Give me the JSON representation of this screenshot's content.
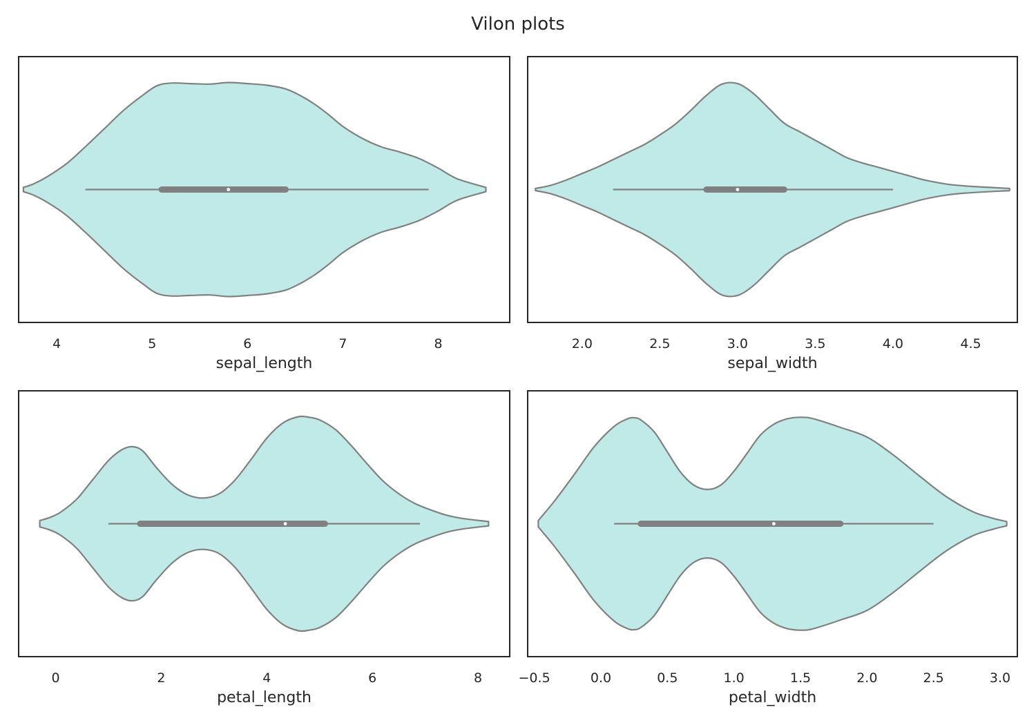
{
  "figure": {
    "title": "Vilon plots"
  },
  "colors": {
    "violin_fill": "#c0eae8",
    "outline": "#808080",
    "frame": "#262626",
    "median": "#ffffff"
  },
  "chart_data": [
    {
      "type": "violin",
      "xlabel": "sepal_length",
      "xlim": [
        3.6,
        8.75
      ],
      "ticks": [
        4,
        5,
        6,
        7,
        8
      ],
      "tick_labels": [
        "4",
        "5",
        "6",
        "7",
        "8"
      ],
      "grid": false,
      "density": {
        "x": [
          3.65,
          3.75,
          3.9,
          4.1,
          4.3,
          4.5,
          4.7,
          4.9,
          5.05,
          5.2,
          5.4,
          5.6,
          5.8,
          6.0,
          6.2,
          6.4,
          6.55,
          6.7,
          6.85,
          7.0,
          7.2,
          7.4,
          7.6,
          7.8,
          8.0,
          8.2,
          8.5
        ],
        "w": [
          0.02,
          0.05,
          0.12,
          0.24,
          0.4,
          0.57,
          0.74,
          0.88,
          0.97,
          0.995,
          0.99,
          0.985,
          1.0,
          0.99,
          0.975,
          0.94,
          0.88,
          0.8,
          0.7,
          0.59,
          0.48,
          0.4,
          0.35,
          0.29,
          0.2,
          0.1,
          0.02
        ]
      },
      "box": {
        "whisker_low": 4.3,
        "q1": 5.1,
        "median": 5.8,
        "q3": 6.4,
        "whisker_high": 7.9
      }
    },
    {
      "type": "violin",
      "xlabel": "sepal_width",
      "xlim": [
        1.65,
        4.8
      ],
      "ticks": [
        2.0,
        2.5,
        3.0,
        3.5,
        4.0,
        4.5
      ],
      "tick_labels": [
        "2.0",
        "2.5",
        "3.0",
        "3.5",
        "4.0",
        "4.5"
      ],
      "grid": false,
      "density": {
        "x": [
          1.7,
          1.8,
          1.9,
          2.0,
          2.1,
          2.2,
          2.3,
          2.4,
          2.5,
          2.6,
          2.7,
          2.8,
          2.9,
          3.0,
          3.1,
          3.2,
          3.3,
          3.4,
          3.5,
          3.6,
          3.7,
          3.8,
          3.9,
          4.0,
          4.1,
          4.2,
          4.35,
          4.5,
          4.75
        ],
        "w": [
          0.01,
          0.04,
          0.09,
          0.15,
          0.21,
          0.28,
          0.35,
          0.42,
          0.51,
          0.61,
          0.74,
          0.88,
          0.985,
          0.99,
          0.9,
          0.76,
          0.62,
          0.54,
          0.46,
          0.38,
          0.3,
          0.25,
          0.21,
          0.17,
          0.13,
          0.09,
          0.05,
          0.03,
          0.01
        ]
      },
      "box": {
        "whisker_low": 2.2,
        "q1": 2.8,
        "median": 3.0,
        "q3": 3.3,
        "whisker_high": 4.0
      }
    },
    {
      "type": "violin",
      "xlabel": "petal_length",
      "xlim": [
        -0.7,
        8.6
      ],
      "ticks": [
        0,
        2,
        4,
        6,
        8
      ],
      "tick_labels": [
        "0",
        "2",
        "4",
        "6",
        "8"
      ],
      "grid": false,
      "density": {
        "x": [
          -0.3,
          -0.1,
          0.1,
          0.4,
          0.7,
          1.0,
          1.25,
          1.45,
          1.65,
          1.9,
          2.2,
          2.5,
          2.8,
          3.1,
          3.4,
          3.7,
          4.0,
          4.3,
          4.6,
          4.8,
          5.0,
          5.3,
          5.6,
          5.9,
          6.2,
          6.5,
          6.8,
          7.1,
          7.4,
          7.7,
          8.2
        ],
        "w": [
          0.03,
          0.06,
          0.11,
          0.23,
          0.41,
          0.59,
          0.69,
          0.72,
          0.68,
          0.53,
          0.37,
          0.27,
          0.24,
          0.28,
          0.41,
          0.6,
          0.8,
          0.94,
          1.0,
          0.995,
          0.97,
          0.88,
          0.73,
          0.56,
          0.4,
          0.28,
          0.19,
          0.13,
          0.08,
          0.05,
          0.02
        ]
      },
      "box": {
        "whisker_low": 1.0,
        "q1": 1.6,
        "median": 4.35,
        "q3": 5.1,
        "whisker_high": 6.9
      }
    },
    {
      "type": "violin",
      "xlabel": "petal_width",
      "xlim": [
        -0.55,
        3.13
      ],
      "ticks": [
        -0.5,
        0.0,
        0.5,
        1.0,
        1.5,
        2.0,
        2.5,
        3.0
      ],
      "tick_labels": [
        "−0.5",
        "0.0",
        "0.5",
        "1.0",
        "1.5",
        "2.0",
        "2.5",
        "3.0"
      ],
      "grid": false,
      "density": {
        "x": [
          -0.47,
          -0.45,
          -0.35,
          -0.2,
          -0.05,
          0.1,
          0.2,
          0.25,
          0.3,
          0.4,
          0.5,
          0.6,
          0.7,
          0.8,
          0.9,
          1.0,
          1.1,
          1.2,
          1.3,
          1.4,
          1.5,
          1.6,
          1.8,
          2.0,
          2.2,
          2.4,
          2.6,
          2.8,
          2.95,
          3.05
        ],
        "w": [
          0.03,
          0.06,
          0.21,
          0.46,
          0.72,
          0.91,
          0.98,
          0.99,
          0.97,
          0.86,
          0.67,
          0.48,
          0.36,
          0.32,
          0.36,
          0.49,
          0.66,
          0.83,
          0.93,
          0.98,
          0.995,
          0.98,
          0.9,
          0.81,
          0.64,
          0.44,
          0.25,
          0.11,
          0.05,
          0.02
        ]
      },
      "box": {
        "whisker_low": 0.1,
        "q1": 0.3,
        "median": 1.3,
        "q3": 1.8,
        "whisker_high": 2.5
      }
    }
  ]
}
